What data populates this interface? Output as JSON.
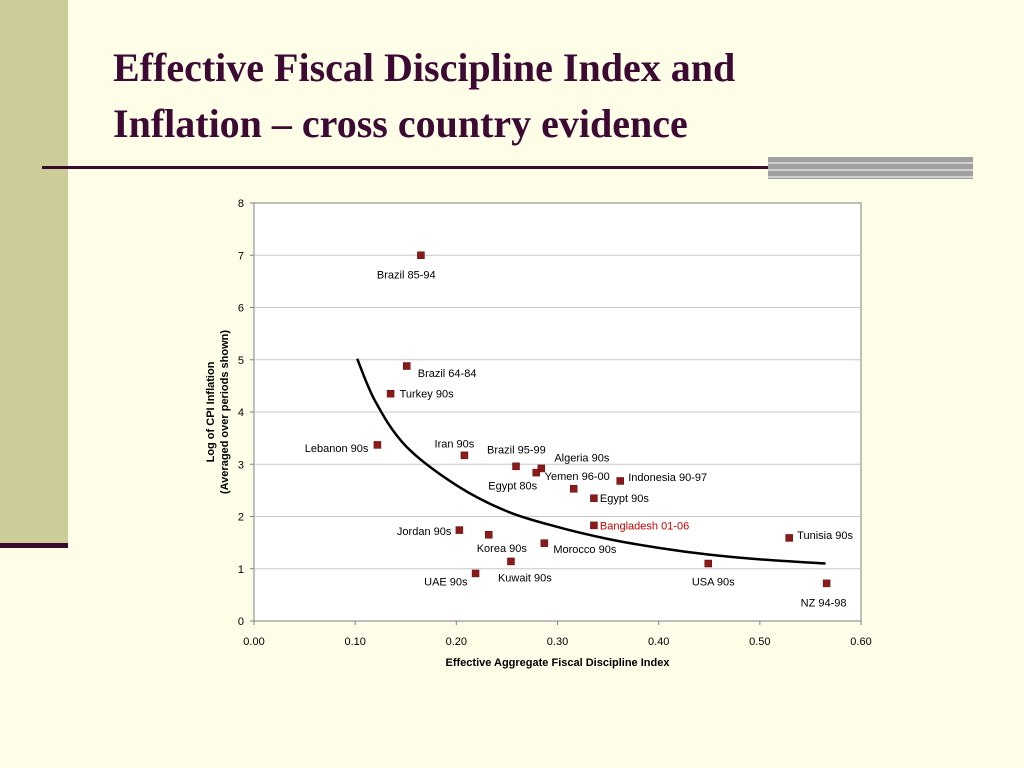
{
  "slide": {
    "title_line1": "Effective Fiscal Discipline Index and",
    "title_line2": "Inflation – cross country evidence"
  },
  "colors": {
    "background": "#fdfde8",
    "title": "#3d0a33",
    "left_bar": "#cccc99",
    "marker": "#8b1a1a",
    "highlight_label": "#cc0000",
    "curve": "#000000"
  },
  "chart_data": {
    "type": "scatter",
    "title": "",
    "xlabel": "Effective Aggregate Fiscal Discipline Index",
    "ylabel_line1": "Log of CPI Inflation",
    "ylabel_line2": "(Averaged over periods shown)",
    "xlim": [
      0,
      0.6
    ],
    "ylim": [
      0,
      8
    ],
    "x_ticks": [
      "0.00",
      "0.10",
      "0.20",
      "0.30",
      "0.40",
      "0.50",
      "0.60"
    ],
    "y_ticks": [
      "0",
      "1",
      "2",
      "3",
      "4",
      "5",
      "6",
      "7",
      "8"
    ],
    "grid": "horizontal",
    "points": [
      {
        "label": "Brazil 85-94",
        "x": 0.165,
        "y": 7.0
      },
      {
        "label": "Brazil 64-84",
        "x": 0.151,
        "y": 4.88
      },
      {
        "label": "Turkey 90s",
        "x": 0.135,
        "y": 4.35
      },
      {
        "label": "Lebanon 90s",
        "x": 0.122,
        "y": 3.37
      },
      {
        "label": "Iran 90s",
        "x": 0.208,
        "y": 3.17
      },
      {
        "label": "Brazil 95-99",
        "x": 0.259,
        "y": 2.96
      },
      {
        "label": "Algeria 90s",
        "x": 0.284,
        "y": 2.92
      },
      {
        "label": "Egypt 80s",
        "x": 0.279,
        "y": 2.84
      },
      {
        "label": "Yemen 96-00",
        "x": 0.316,
        "y": 2.53
      },
      {
        "label": "Indonesia 90-97",
        "x": 0.362,
        "y": 2.68
      },
      {
        "label": "Egypt 90s",
        "x": 0.336,
        "y": 2.35
      },
      {
        "label": "Bangladesh 01-06",
        "x": 0.336,
        "y": 1.83,
        "highlight": true
      },
      {
        "label": "Jordan 90s",
        "x": 0.203,
        "y": 1.74
      },
      {
        "label": "Korea 90s",
        "x": 0.232,
        "y": 1.65
      },
      {
        "label": "Morocco 90s",
        "x": 0.287,
        "y": 1.49
      },
      {
        "label": "Kuwait 90s",
        "x": 0.254,
        "y": 1.14
      },
      {
        "label": "UAE 90s",
        "x": 0.219,
        "y": 0.91
      },
      {
        "label": "USA 90s",
        "x": 0.449,
        "y": 1.1
      },
      {
        "label": "Tunisia 90s",
        "x": 0.529,
        "y": 1.59
      },
      {
        "label": "NZ 94-98",
        "x": 0.566,
        "y": 0.72
      }
    ],
    "trend_line": {
      "type": "power",
      "x": [
        0.102,
        0.12,
        0.15,
        0.2,
        0.25,
        0.3,
        0.35,
        0.4,
        0.45,
        0.5,
        0.565
      ],
      "y": [
        5.02,
        4.2,
        3.35,
        2.6,
        2.1,
        1.8,
        1.57,
        1.4,
        1.27,
        1.18,
        1.1
      ]
    }
  }
}
